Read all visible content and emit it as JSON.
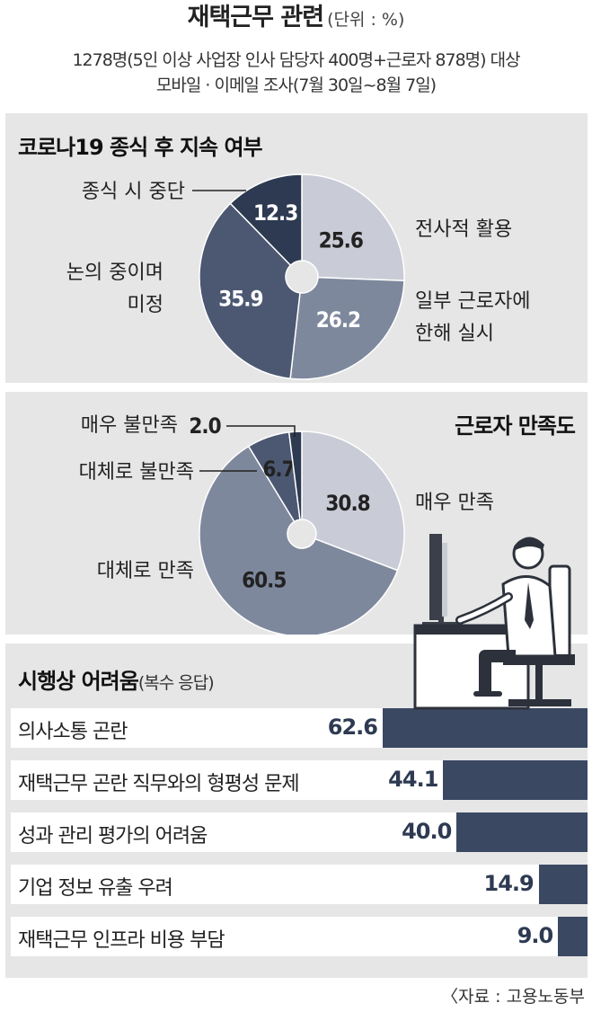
{
  "header": {
    "title": "재택근무 관련",
    "unit": "(단위 : %)",
    "subtitle_line1": "1278명(5인 이상 사업장 인사 담당자 400명+근로자 878명) 대상",
    "subtitle_line2": "모바일 · 이메일 조사(7월 30일~8월 7일)"
  },
  "chart_data": [
    {
      "type": "pie",
      "title": "코로나19 종식 후 지속 여부",
      "slices": [
        {
          "label": "전사적 활용",
          "value": 25.6,
          "color": "#c9ccd6"
        },
        {
          "label": "일부 근로자에 한해 실시",
          "value": 26.2,
          "color": "#7e889d"
        },
        {
          "label": "논의 중이며 미정",
          "value": 35.9,
          "color": "#4c5872"
        },
        {
          "label": "종식 시 중단",
          "value": 12.3,
          "color": "#2d3a52"
        }
      ],
      "label_lines": {
        "전사적 활용": [
          "전사적 활용"
        ],
        "일부 근로자에 한해 실시": [
          "일부 근로자에",
          "한해 실시"
        ],
        "논의 중이며 미정": [
          "논의 중이며",
          "미정"
        ],
        "종식 시 중단": [
          "종식 시 중단"
        ]
      }
    },
    {
      "type": "pie",
      "title": "근로자 만족도",
      "slices": [
        {
          "label": "매우 만족",
          "value": 30.8,
          "color": "#c9ccd6"
        },
        {
          "label": "대체로 만족",
          "value": 60.5,
          "color": "#7e889d"
        },
        {
          "label": "대체로 불만족",
          "value": 6.7,
          "color": "#4c5872"
        },
        {
          "label": "매우 불만족",
          "value": 2.0,
          "color": "#2d3a52"
        }
      ]
    },
    {
      "type": "bar",
      "orientation": "horizontal",
      "title": "시행상 어려움",
      "title_note": "(복수 응답)",
      "categories": [
        "의사소통 곤란",
        "재택근무 곤란 직무와의 형평성 문제",
        "성과 관리 평가의 어려움",
        "기업 정보 유출 우려",
        "재택근무 인프라 비용 부담"
      ],
      "values": [
        62.6,
        44.1,
        40.0,
        14.9,
        9.0
      ],
      "value_labels": [
        "62.6",
        "44.1",
        "40.0",
        "14.9",
        "9.0"
      ],
      "xlim": [
        0,
        100
      ]
    }
  ],
  "source": "〈자료 : 고용노동부"
}
